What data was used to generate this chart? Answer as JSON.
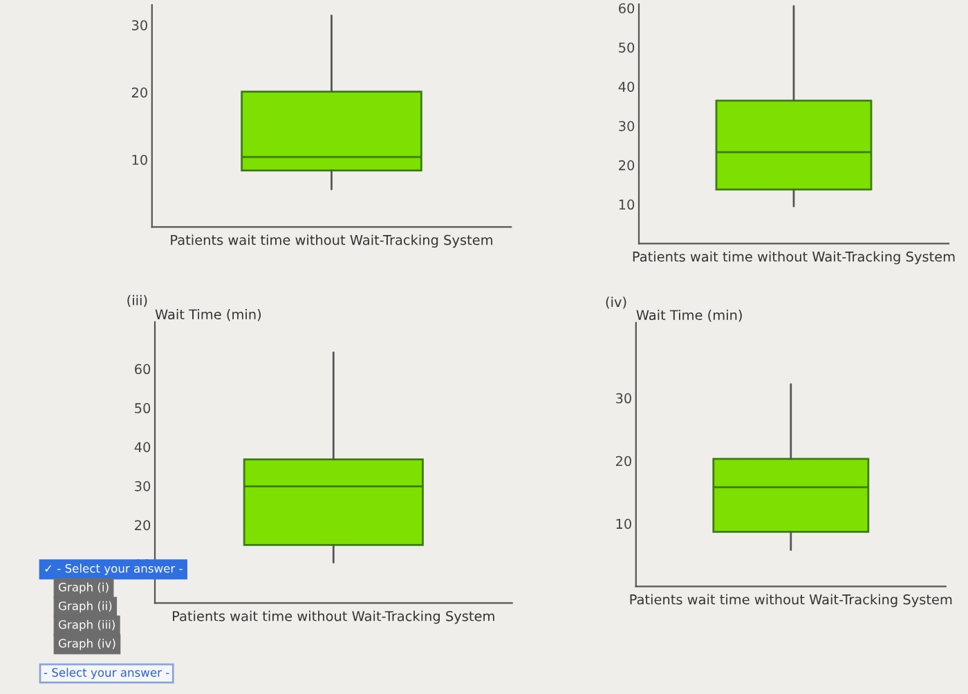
{
  "chart_data": [
    {
      "type": "box",
      "xlabel": "Patients wait time without Wait-Tracking System",
      "categories": [
        null
      ],
      "color": "#7ee000",
      "ylim": [
        0,
        33
      ],
      "yticks": [
        10,
        20,
        30
      ],
      "tick_labels": "y",
      "boxes": [
        {
          "low": 5.6,
          "q1": 8.4,
          "median": 10.4,
          "q3": 20.1,
          "high": 31.4
        }
      ]
    },
    {
      "type": "box",
      "xlabel": "Patients wait time without Wait-Tracking System",
      "categories": [
        null
      ],
      "color": "#7ee000",
      "ylim": [
        0,
        61
      ],
      "yticks": [
        10,
        20,
        30,
        40,
        50,
        60
      ],
      "tick_labels": "y",
      "boxes": [
        {
          "low": 9.5,
          "q1": 13.8,
          "median": 23.3,
          "q3": 36.4,
          "high": 60.5
        }
      ]
    },
    {
      "type": "box",
      "title": "(iii)",
      "ylabel": "Wait Time (min)",
      "xlabel": "Patients wait time without Wait-Tracking System",
      "categories": [
        null
      ],
      "color": "#7ee000",
      "ylim": [
        0,
        72
      ],
      "yticks": [
        10,
        20,
        30,
        40,
        50,
        60
      ],
      "tick_labels": "y",
      "boxes": [
        {
          "low": 10.4,
          "q1": 14.9,
          "median": 29.9,
          "q3": 36.8,
          "high": 64.2
        }
      ]
    },
    {
      "type": "box",
      "title": "(iv)",
      "ylabel": "Wait Time (min)",
      "xlabel": "Patients wait time without Wait-Tracking System",
      "categories": [
        null
      ],
      "color": "#7ee000",
      "ylim": [
        0,
        42
      ],
      "yticks": [
        10,
        20,
        30
      ],
      "tick_labels": "y",
      "boxes": [
        {
          "low": 5.8,
          "q1": 8.7,
          "median": 15.8,
          "q3": 20.3,
          "high": 32.2
        }
      ]
    },
    {
      "type": "other",
      "annotations": [
        "✓ - Select your answer -",
        "Graph (i)",
        "Graph (ii)",
        "Graph (iii)",
        "Graph (iv)",
        "- Select your answer -"
      ]
    }
  ]
}
